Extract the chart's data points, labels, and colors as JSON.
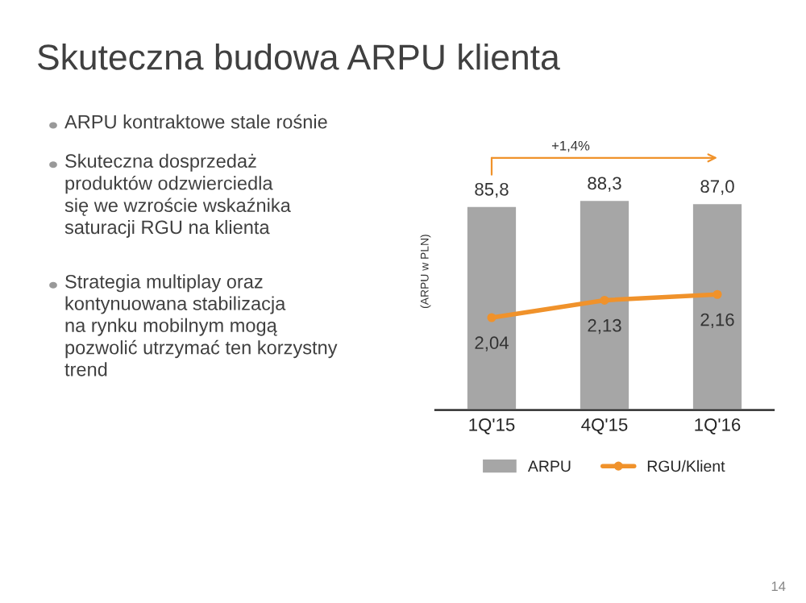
{
  "chart_data": {
    "type": "bar",
    "title": "Skuteczna budowa ARPU klienta",
    "ylabel": "(ARPU w PLN)",
    "categories": [
      "1Q'15",
      "4Q'15",
      "1Q'16"
    ],
    "series": [
      {
        "name": "ARPU",
        "color": "#a6a6a6",
        "values": [
          85.8,
          88.3,
          87.0
        ],
        "value_labels": [
          "85,8",
          "88,3",
          "87,0"
        ]
      },
      {
        "name": "RGU/Klient",
        "type": "line",
        "axis": "y2",
        "color": "#f0922b",
        "values": [
          2.04,
          2.13,
          2.16
        ],
        "value_labels": [
          "2,04",
          "2,13",
          "2,16"
        ]
      }
    ],
    "tick_labels": "x",
    "legend": "bottom",
    "marker": "circle",
    "line_style": "solid",
    "annotations": [
      "ARPU kontraktowe stale rośnie",
      "Skuteczna dosprzedaż\nproduktów odzwierciedla\nsię we wzroście wskaźnika\nsaturacji RGU na klienta",
      "Strategia multiplay oraz\nkontynuowana stabilizacja\nna rynku mobilnym mogą\npozwolić utrzymać ten korzystny\ntrend",
      "+1,4%",
      "14"
    ]
  }
}
